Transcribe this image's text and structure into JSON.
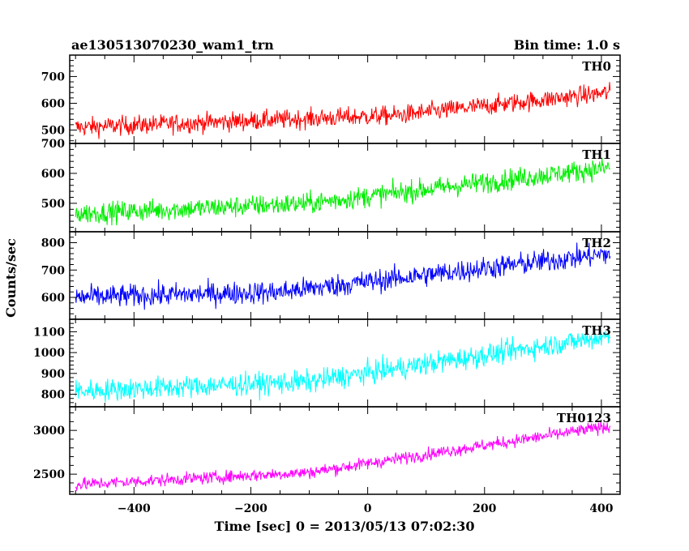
{
  "header": {
    "title": "ae130513070230_wam1_trn",
    "bin_time": "Bin time: 1.0 s"
  },
  "axes": {
    "ylabel": "Counts/sec",
    "xlabel": "Time [sec] 0 = 2013/05/13 07:02:30",
    "xlim": [
      -510,
      432
    ],
    "xticks": [
      -400,
      -200,
      0,
      200,
      400
    ],
    "xtick_labels": [
      "−400",
      "−200",
      "0",
      "200",
      "400"
    ]
  },
  "chart_data": [
    {
      "type": "line",
      "series": [
        {
          "name": "TH0",
          "color": "#ff0000"
        }
      ],
      "x_range": [
        -500,
        415
      ],
      "trend": {
        "start": 510,
        "end": 640,
        "knee_x": 50,
        "knee_y": 555,
        "noise": 30
      },
      "ylim": [
        450,
        780
      ],
      "yticks": [
        500,
        600,
        700
      ],
      "ytick_labels": [
        "500",
        "600",
        "700"
      ]
    },
    {
      "type": "line",
      "series": [
        {
          "name": "TH1",
          "color": "#00ee00"
        }
      ],
      "x_range": [
        -500,
        415
      ],
      "trend": {
        "start": 465,
        "end": 620,
        "knee_x": -100,
        "knee_y": 500,
        "noise": 30
      },
      "ylim": [
        405,
        700
      ],
      "yticks": [
        500,
        600,
        700
      ],
      "ytick_labels": [
        "500",
        "600",
        "700"
      ]
    },
    {
      "type": "line",
      "series": [
        {
          "name": "TH2",
          "color": "#0000ff"
        }
      ],
      "x_range": [
        -500,
        415
      ],
      "trend": {
        "start": 600,
        "end": 760,
        "knee_x": -150,
        "knee_y": 620,
        "noise": 35
      },
      "ylim": [
        520,
        840
      ],
      "yticks": [
        600,
        700,
        800
      ],
      "ytick_labels": [
        "600",
        "700",
        "800"
      ]
    },
    {
      "type": "line",
      "series": [
        {
          "name": "TH3",
          "color": "#00ffff"
        }
      ],
      "x_range": [
        -500,
        415
      ],
      "trend": {
        "start": 815,
        "end": 1080,
        "knee_x": -100,
        "knee_y": 860,
        "noise": 45
      },
      "ylim": [
        740,
        1160
      ],
      "yticks": [
        800,
        900,
        1000,
        1100
      ],
      "ytick_labels": [
        "800",
        "900",
        "1000",
        "1100"
      ]
    },
    {
      "type": "line",
      "series": [
        {
          "name": "TH0123",
          "color": "#ff00ff"
        }
      ],
      "x_range": [
        -500,
        415
      ],
      "trend": {
        "start": 2380,
        "end": 3050,
        "knee_x": -100,
        "knee_y": 2520,
        "noise": 60
      },
      "ylim": [
        2270,
        3270
      ],
      "yticks": [
        2500,
        3000
      ],
      "ytick_labels": [
        "2500",
        "3000"
      ]
    }
  ]
}
